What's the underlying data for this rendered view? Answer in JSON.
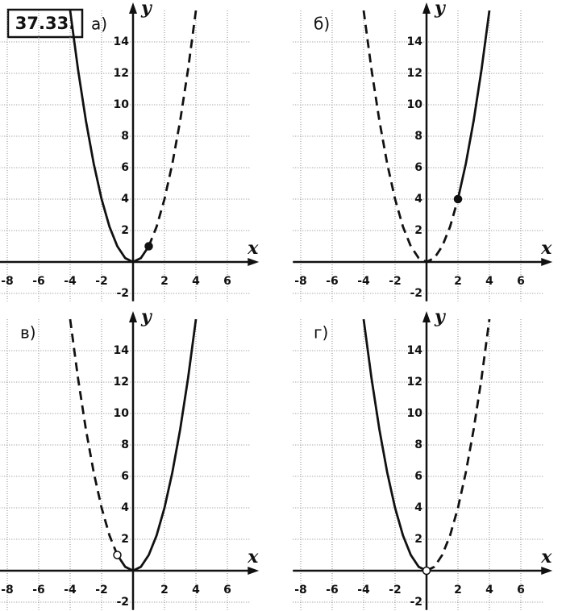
{
  "header": "37.33.",
  "chart_data": [
    {
      "type": "line",
      "panel_label": "а)",
      "x_label": "x",
      "y_label": "y",
      "xlim": [
        -8.5,
        7.5
      ],
      "ylim": [
        -2.5,
        16
      ],
      "xticks": [
        -8,
        -6,
        -4,
        -2,
        2,
        4,
        6
      ],
      "yticks": [
        -2,
        2,
        4,
        6,
        8,
        10,
        12,
        14
      ],
      "grid": true,
      "color": "#111111",
      "series": [
        {
          "style": "solid",
          "x": [
            -4,
            -3.5,
            -3,
            -2.5,
            -2,
            -1.5,
            -1,
            -0.5,
            0,
            0.5,
            1
          ],
          "values": [
            16,
            12.25,
            9,
            6.25,
            4,
            2.25,
            1,
            0.25,
            0,
            0.25,
            1
          ]
        },
        {
          "style": "dashed",
          "x": [
            1,
            1.5,
            2,
            2.5,
            3,
            3.5,
            4
          ],
          "values": [
            1,
            2.25,
            4,
            6.25,
            9,
            12.25,
            16
          ]
        },
        {
          "style": "point-filled",
          "x": [
            1
          ],
          "values": [
            1
          ]
        }
      ]
    },
    {
      "type": "line",
      "panel_label": "б)",
      "x_label": "x",
      "y_label": "y",
      "xlim": [
        -8.5,
        7.5
      ],
      "ylim": [
        -2.5,
        16
      ],
      "xticks": [
        -8,
        -6,
        -4,
        -2,
        2,
        4,
        6
      ],
      "yticks": [
        -2,
        2,
        4,
        6,
        8,
        10,
        12,
        14
      ],
      "grid": true,
      "color": "#111111",
      "series": [
        {
          "style": "dashed",
          "x": [
            -4,
            -3.5,
            -3,
            -2.5,
            -2,
            -1.5,
            -1,
            -0.5,
            0,
            0.5,
            1,
            1.5,
            2
          ],
          "values": [
            16,
            12.25,
            9,
            6.25,
            4,
            2.25,
            1,
            0.25,
            0,
            0.25,
            1,
            2.25,
            4
          ]
        },
        {
          "style": "solid",
          "x": [
            2,
            2.5,
            3,
            3.5,
            4
          ],
          "values": [
            4,
            6.25,
            9,
            12.25,
            16
          ]
        },
        {
          "style": "point-filled",
          "x": [
            2
          ],
          "values": [
            4
          ]
        }
      ]
    },
    {
      "type": "line",
      "panel_label": "в)",
      "x_label": "x",
      "y_label": "y",
      "xlim": [
        -8.5,
        7.5
      ],
      "ylim": [
        -2.5,
        16
      ],
      "xticks": [
        -8,
        -6,
        -4,
        -2,
        2,
        4,
        6
      ],
      "yticks": [
        -2,
        2,
        4,
        6,
        8,
        10,
        12,
        14
      ],
      "grid": true,
      "color": "#111111",
      "series": [
        {
          "style": "dashed",
          "x": [
            -4,
            -3.5,
            -3,
            -2.5,
            -2,
            -1.5,
            -1
          ],
          "values": [
            16,
            12.25,
            9,
            6.25,
            4,
            2.25,
            1
          ]
        },
        {
          "style": "solid",
          "x": [
            -1,
            -0.5,
            0,
            0.5,
            1,
            1.5,
            2,
            2.5,
            3,
            3.5,
            4
          ],
          "values": [
            1,
            0.25,
            0,
            0.25,
            1,
            2.25,
            4,
            6.25,
            9,
            12.25,
            16
          ]
        },
        {
          "style": "point-hollow",
          "x": [
            -1
          ],
          "values": [
            1
          ]
        }
      ]
    },
    {
      "type": "line",
      "panel_label": "г)",
      "x_label": "x",
      "y_label": "y",
      "xlim": [
        -8.5,
        7.5
      ],
      "ylim": [
        -2.5,
        16
      ],
      "xticks": [
        -8,
        -6,
        -4,
        -2,
        2,
        4,
        6
      ],
      "yticks": [
        -2,
        2,
        4,
        6,
        8,
        10,
        12,
        14
      ],
      "grid": true,
      "color": "#111111",
      "series": [
        {
          "style": "solid",
          "x": [
            -4,
            -3.5,
            -3,
            -2.5,
            -2,
            -1.5,
            -1,
            -0.5,
            0
          ],
          "values": [
            16,
            12.25,
            9,
            6.25,
            4,
            2.25,
            1,
            0.25,
            0
          ]
        },
        {
          "style": "dashed",
          "x": [
            0,
            0.5,
            1,
            1.5,
            2,
            2.5,
            3,
            3.5,
            4
          ],
          "values": [
            0,
            0.25,
            1,
            2.25,
            4,
            6.25,
            9,
            12.25,
            16
          ]
        },
        {
          "style": "point-hollow",
          "x": [
            0
          ],
          "values": [
            0
          ]
        }
      ]
    }
  ]
}
